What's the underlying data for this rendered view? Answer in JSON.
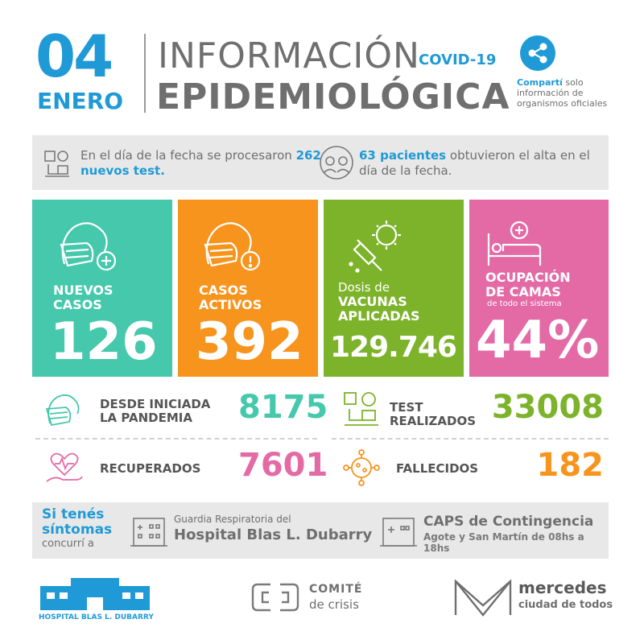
{
  "header": {
    "day": "04",
    "month": "ENERO",
    "title_line1": "INFORMACIÓN",
    "covid": "COVID-19",
    "title_line2": "EPIDEMIOLÓGICA",
    "share_bold": "Compartí",
    "share_rest": "solo información de organismos oficiales"
  },
  "info": {
    "left_pre": "En el día de la fecha se procesaron ",
    "left_hl": "262 nuevos test.",
    "right_hl": "63 pacientes",
    "right_post": " obtuvieron el alta en el día de la fecha."
  },
  "boxes": {
    "nuevos": {
      "label1": "NUEVOS",
      "label2": "CASOS",
      "value": "126",
      "color": "#45c8ac"
    },
    "activos": {
      "label1": "CASOS",
      "label2": "ACTIVOS",
      "value": "392",
      "color": "#f7941d"
    },
    "vacunas": {
      "pre": "Dosis de",
      "label1": "VACUNAS",
      "label2": "APLICADAS",
      "value": "129.746",
      "color": "#7cb32b"
    },
    "camas": {
      "label1": "OCUPACIÓN",
      "label2": "DE CAMAS",
      "sub": "de todo el sistema",
      "value": "44%",
      "color": "#e46aa6"
    }
  },
  "stats": {
    "pandemia": {
      "label1": "DESDE INICIADA",
      "label2": "LA PANDEMIA",
      "value": "8175",
      "color": "#45c8ac"
    },
    "test": {
      "label1": "TEST",
      "label2": "REALIZADOS",
      "value": "33008",
      "color": "#7cb32b"
    },
    "recuperados": {
      "label": "RECUPERADOS",
      "value": "7601",
      "color": "#e46aa6"
    },
    "fallecidos": {
      "label": "FALLECIDOS",
      "value": "182",
      "color": "#f7941d"
    }
  },
  "sintomas": {
    "line1": "Si tenés",
    "line2": "síntomas",
    "line3": "concurrí a",
    "hospital_pre": "Guardia Respiratoria del",
    "hospital_name": "Hospital Blas L. Dubarry",
    "caps_name": "CAPS de Contingencia",
    "caps_addr": "Agote y San Martín de 08hs a 18hs"
  },
  "footer": {
    "hospital": "HOSPITAL BLAS L. DUBARRY",
    "comite1": "COMITÉ",
    "comite2": "de crisis",
    "mercedes1": "mercedes",
    "mercedes2": "ciudad de todos"
  },
  "icons": [
    "share-icon",
    "lab-icon",
    "doctor-icon",
    "mask-face-icon",
    "mask-alert-icon",
    "vaccine-icon",
    "hospital-bed-icon",
    "heart-hand-icon",
    "virus-icon",
    "hospital-building-icon",
    "caps-building-icon"
  ]
}
